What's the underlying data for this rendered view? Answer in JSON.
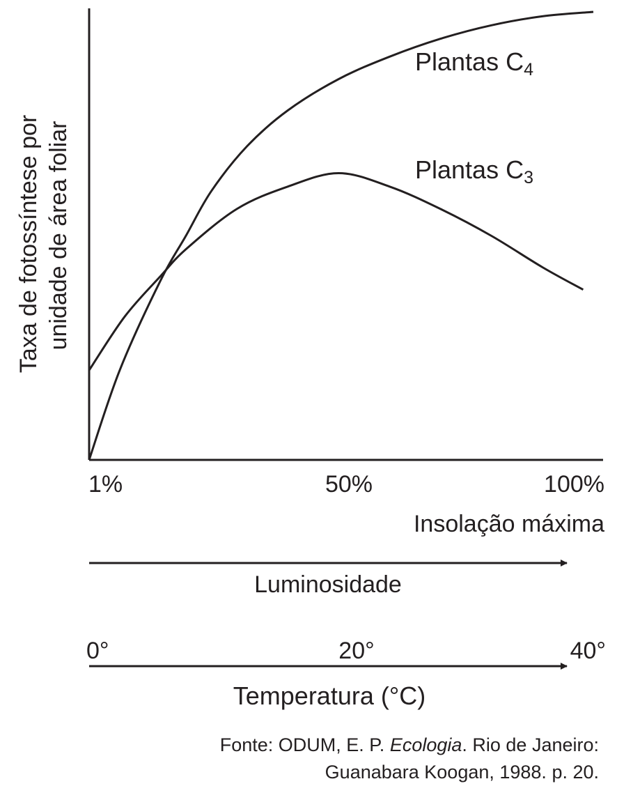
{
  "chart_data": {
    "type": "line",
    "ylabel_lines": [
      "Taxa de fotossíntese por",
      "unidade de área foliar"
    ],
    "xlabel": "Insolação máxima",
    "x_ticks": [
      "1%",
      "50%",
      "100%"
    ],
    "xlim": [
      1,
      100
    ],
    "series": [
      {
        "name": "Plantas C4",
        "label_main": "Plantas C",
        "label_sub": "4",
        "x": [
          1,
          7,
          15,
          20,
          25,
          32,
          40,
          50,
          60,
          70,
          80,
          90,
          100
        ],
        "y": [
          0,
          20,
          40,
          50,
          60,
          70,
          78,
          85,
          90,
          94,
          97,
          99,
          100
        ]
      },
      {
        "name": "Plantas C3",
        "label_main": "Plantas C",
        "label_sub": "3",
        "x": [
          1,
          8,
          15,
          20,
          30,
          40,
          50,
          60,
          70,
          80,
          90,
          98
        ],
        "y": [
          20,
          32,
          41,
          47,
          56,
          61,
          64,
          61,
          56,
          50,
          43,
          38
        ]
      }
    ],
    "ylim": [
      0,
      100
    ],
    "grid": false
  },
  "scales": [
    {
      "id": "luminosidade",
      "label": "Luminosidade",
      "ticks": []
    },
    {
      "id": "temperatura",
      "label": "Temperatura (°C)",
      "ticks": [
        "0°",
        "20°",
        "40°"
      ]
    }
  ],
  "source": {
    "line1_prefix": "Fonte: ODUM, E. P. ",
    "line1_title": "Ecologia",
    "line1_suffix": ". Rio de Janeiro:",
    "line2": "Guanabara Koogan, 1988. p. 20."
  }
}
